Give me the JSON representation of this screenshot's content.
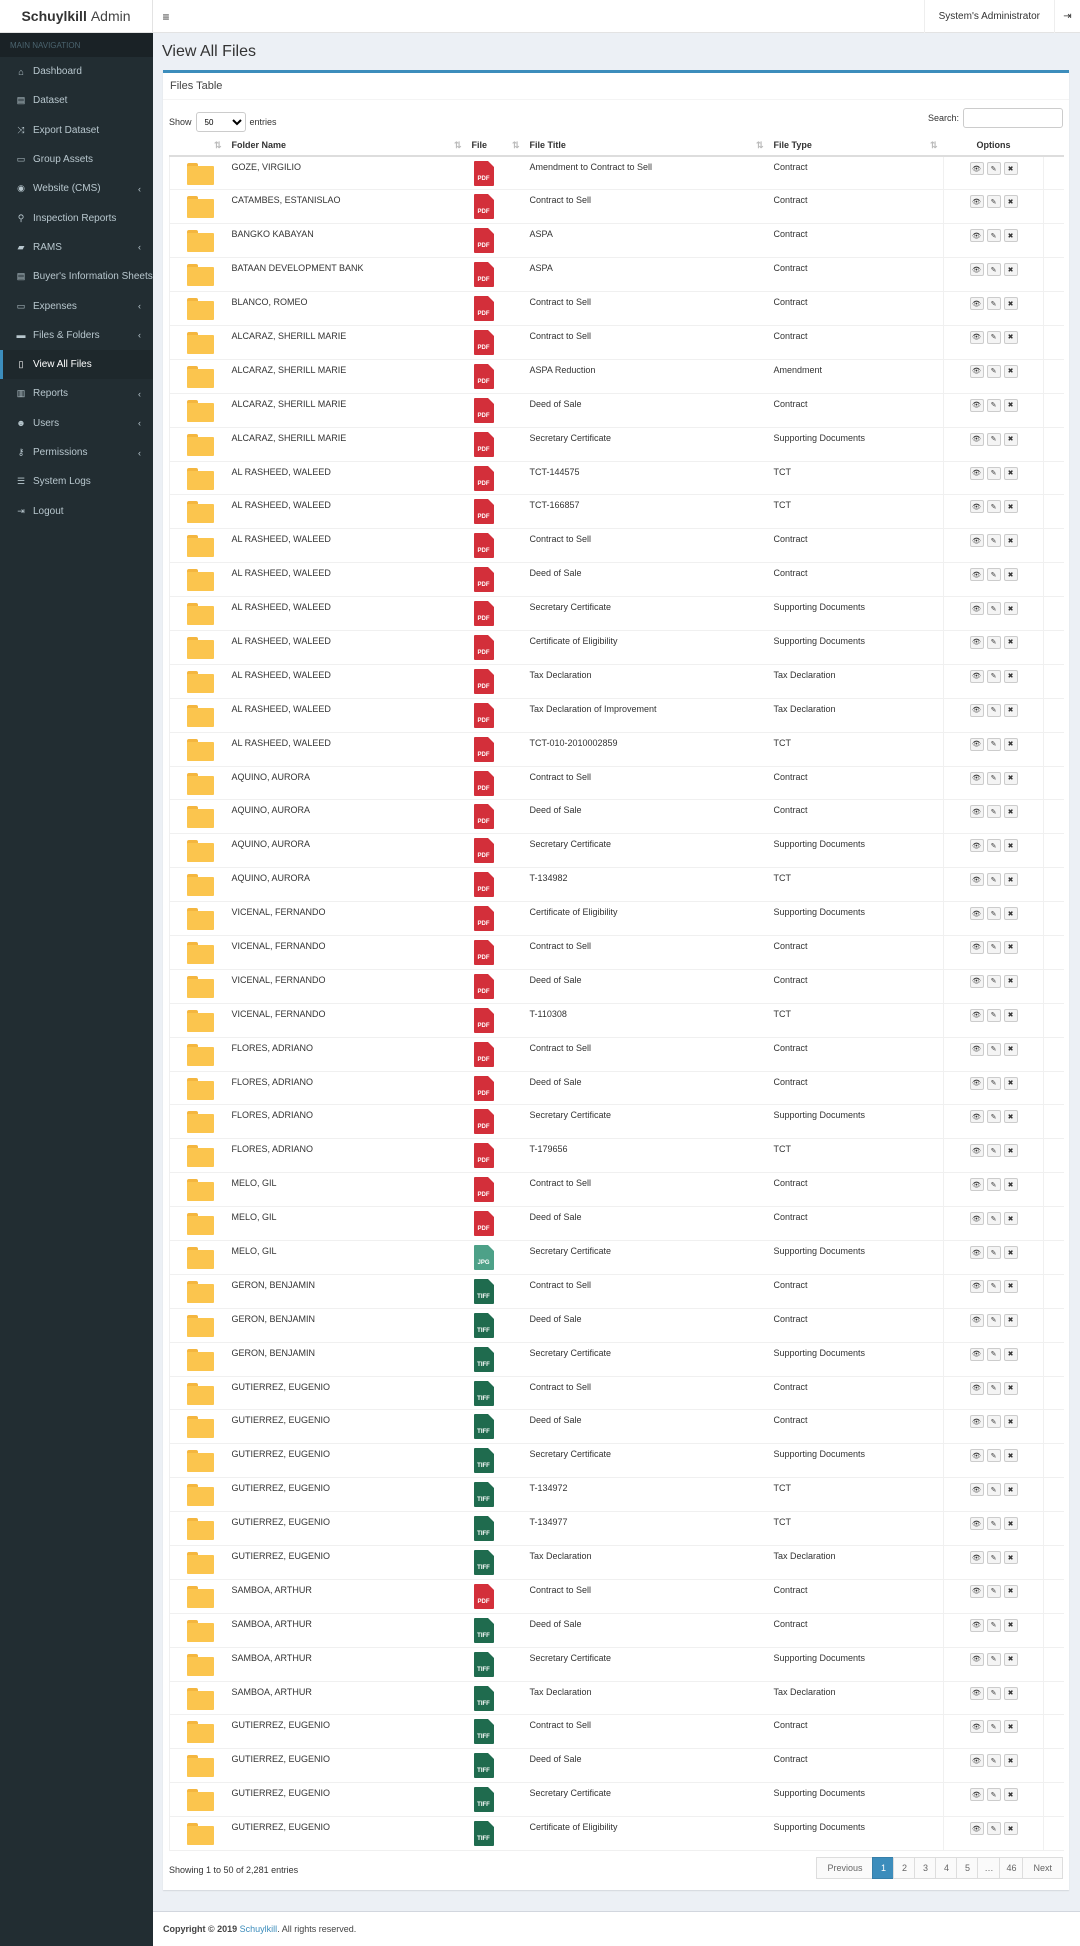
{
  "app": {
    "brand_bold": "Schuylkill",
    "brand_light": "Admin"
  },
  "topbar": {
    "toggle_icon": "≡",
    "user_name": "System's Administrator",
    "logout_icon": "⇥"
  },
  "sidebar": {
    "header": "MAIN NAVIGATION",
    "items": [
      {
        "label": "Dashboard",
        "icon": "⌂",
        "chev": ""
      },
      {
        "label": "Dataset",
        "icon": "▤",
        "chev": ""
      },
      {
        "label": "Export Dataset",
        "icon": "⤨",
        "chev": ""
      },
      {
        "label": "Group Assets",
        "icon": "▭",
        "chev": ""
      },
      {
        "label": "Website (CMS)",
        "icon": "◉",
        "chev": "‹"
      },
      {
        "label": "Inspection Reports",
        "icon": "⚲",
        "chev": ""
      },
      {
        "label": "RAMS",
        "icon": "▰",
        "chev": "‹"
      },
      {
        "label": "Buyer's Information Sheets",
        "icon": "▤",
        "chev": ""
      },
      {
        "label": "Expenses",
        "icon": "▭",
        "chev": "‹"
      },
      {
        "label": "Files & Folders",
        "icon": "▬",
        "chev": "‹"
      },
      {
        "label": "View All Files",
        "icon": "▯",
        "chev": ""
      },
      {
        "label": "Reports",
        "icon": "▥",
        "chev": "‹"
      },
      {
        "label": "Users",
        "icon": "☻",
        "chev": "‹"
      },
      {
        "label": "Permissions",
        "icon": "⚷",
        "chev": "‹"
      },
      {
        "label": "System Logs",
        "icon": "☰",
        "chev": ""
      },
      {
        "label": "Logout",
        "icon": "⇥",
        "chev": ""
      }
    ]
  },
  "page": {
    "title": "View All Files"
  },
  "box": {
    "title": "Files Table"
  },
  "controls": {
    "show_label": "Show",
    "entries_label": "entries",
    "page_size": "50",
    "search_label": "Search:",
    "search_value": ""
  },
  "table": {
    "headers": {
      "folder": "Folder Name",
      "file": "File",
      "title": "File Title",
      "type": "File Type",
      "options": "Options"
    },
    "rows": [
      {
        "folder": "GOZE, VIRGILIO",
        "ft": "PDF",
        "title": "Amendment to Contract to Sell",
        "type": "Contract"
      },
      {
        "folder": "CATAMBES, ESTANISLAO",
        "ft": "PDF",
        "title": "Contract to Sell",
        "type": "Contract"
      },
      {
        "folder": "BANGKO KABAYAN",
        "ft": "PDF",
        "title": "ASPA",
        "type": "Contract"
      },
      {
        "folder": "BATAAN DEVELOPMENT BANK",
        "ft": "PDF",
        "title": "ASPA",
        "type": "Contract"
      },
      {
        "folder": "BLANCO, ROMEO",
        "ft": "PDF",
        "title": "Contract to Sell",
        "type": "Contract"
      },
      {
        "folder": "ALCARAZ, SHERILL MARIE",
        "ft": "PDF",
        "title": "Contract to Sell",
        "type": "Contract"
      },
      {
        "folder": "ALCARAZ, SHERILL MARIE",
        "ft": "PDF",
        "title": "ASPA Reduction",
        "type": "Amendment"
      },
      {
        "folder": "ALCARAZ, SHERILL MARIE",
        "ft": "PDF",
        "title": "Deed of Sale",
        "type": "Contract"
      },
      {
        "folder": "ALCARAZ, SHERILL MARIE",
        "ft": "PDF",
        "title": "Secretary Certificate",
        "type": "Supporting Documents"
      },
      {
        "folder": "AL RASHEED, WALEED",
        "ft": "PDF",
        "title": "TCT-144575",
        "type": "TCT"
      },
      {
        "folder": "AL RASHEED, WALEED",
        "ft": "PDF",
        "title": "TCT-166857",
        "type": "TCT"
      },
      {
        "folder": "AL RASHEED, WALEED",
        "ft": "PDF",
        "title": "Contract to Sell",
        "type": "Contract"
      },
      {
        "folder": "AL RASHEED, WALEED",
        "ft": "PDF",
        "title": "Deed of Sale",
        "type": "Contract"
      },
      {
        "folder": "AL RASHEED, WALEED",
        "ft": "PDF",
        "title": "Secretary Certificate",
        "type": "Supporting Documents"
      },
      {
        "folder": "AL RASHEED, WALEED",
        "ft": "PDF",
        "title": "Certificate of Eligibility",
        "type": "Supporting Documents"
      },
      {
        "folder": "AL RASHEED, WALEED",
        "ft": "PDF",
        "title": "Tax Declaration",
        "type": "Tax Declaration"
      },
      {
        "folder": "AL RASHEED, WALEED",
        "ft": "PDF",
        "title": "Tax Declaration of Improvement",
        "type": "Tax Declaration"
      },
      {
        "folder": "AL RASHEED, WALEED",
        "ft": "PDF",
        "title": "TCT-010-2010002859",
        "type": "TCT"
      },
      {
        "folder": "AQUINO, AURORA",
        "ft": "PDF",
        "title": "Contract to Sell",
        "type": "Contract"
      },
      {
        "folder": "AQUINO, AURORA",
        "ft": "PDF",
        "title": "Deed of Sale",
        "type": "Contract"
      },
      {
        "folder": "AQUINO, AURORA",
        "ft": "PDF",
        "title": "Secretary Certificate",
        "type": "Supporting Documents"
      },
      {
        "folder": "AQUINO, AURORA",
        "ft": "PDF",
        "title": "T-134982",
        "type": "TCT"
      },
      {
        "folder": "VICENAL, FERNANDO",
        "ft": "PDF",
        "title": "Certificate of Eligibility",
        "type": "Supporting Documents"
      },
      {
        "folder": "VICENAL, FERNANDO",
        "ft": "PDF",
        "title": "Contract to Sell",
        "type": "Contract"
      },
      {
        "folder": "VICENAL, FERNANDO",
        "ft": "PDF",
        "title": "Deed of Sale",
        "type": "Contract"
      },
      {
        "folder": "VICENAL, FERNANDO",
        "ft": "PDF",
        "title": "T-110308",
        "type": "TCT"
      },
      {
        "folder": "FLORES, ADRIANO",
        "ft": "PDF",
        "title": "Contract to Sell",
        "type": "Contract"
      },
      {
        "folder": "FLORES, ADRIANO",
        "ft": "PDF",
        "title": "Deed of Sale",
        "type": "Contract"
      },
      {
        "folder": "FLORES, ADRIANO",
        "ft": "PDF",
        "title": "Secretary Certificate",
        "type": "Supporting Documents"
      },
      {
        "folder": "FLORES, ADRIANO",
        "ft": "PDF",
        "title": "T-179656",
        "type": "TCT"
      },
      {
        "folder": "MELO, GIL",
        "ft": "PDF",
        "title": "Contract to Sell",
        "type": "Contract"
      },
      {
        "folder": "MELO, GIL",
        "ft": "PDF",
        "title": "Deed of Sale",
        "type": "Contract"
      },
      {
        "folder": "MELO, GIL",
        "ft": "JPG",
        "title": "Secretary Certificate",
        "type": "Supporting Documents"
      },
      {
        "folder": "GERON, BENJAMIN",
        "ft": "TIFF",
        "title": "Contract to Sell",
        "type": "Contract"
      },
      {
        "folder": "GERON, BENJAMIN",
        "ft": "TIFF",
        "title": "Deed of Sale",
        "type": "Contract"
      },
      {
        "folder": "GERON, BENJAMIN",
        "ft": "TIFF",
        "title": "Secretary Certificate",
        "type": "Supporting Documents"
      },
      {
        "folder": "GUTIERREZ, EUGENIO",
        "ft": "TIFF",
        "title": "Contract to Sell",
        "type": "Contract"
      },
      {
        "folder": "GUTIERREZ, EUGENIO",
        "ft": "TIFF",
        "title": "Deed of Sale",
        "type": "Contract"
      },
      {
        "folder": "GUTIERREZ, EUGENIO",
        "ft": "TIFF",
        "title": "Secretary Certificate",
        "type": "Supporting Documents"
      },
      {
        "folder": "GUTIERREZ, EUGENIO",
        "ft": "TIFF",
        "title": "T-134972",
        "type": "TCT"
      },
      {
        "folder": "GUTIERREZ, EUGENIO",
        "ft": "TIFF",
        "title": "T-134977",
        "type": "TCT"
      },
      {
        "folder": "GUTIERREZ, EUGENIO",
        "ft": "TIFF",
        "title": "Tax Declaration",
        "type": "Tax Declaration"
      },
      {
        "folder": "SAMBOA, ARTHUR",
        "ft": "PDF",
        "title": "Contract to Sell",
        "type": "Contract"
      },
      {
        "folder": "SAMBOA, ARTHUR",
        "ft": "TIFF",
        "title": "Deed of Sale",
        "type": "Contract"
      },
      {
        "folder": "SAMBOA, ARTHUR",
        "ft": "TIFF",
        "title": "Secretary Certificate",
        "type": "Supporting Documents"
      },
      {
        "folder": "SAMBOA, ARTHUR",
        "ft": "TIFF",
        "title": "Tax Declaration",
        "type": "Tax Declaration"
      },
      {
        "folder": "GUTIERREZ, EUGENIO",
        "ft": "TIFF",
        "title": "Contract to Sell",
        "type": "Contract"
      },
      {
        "folder": "GUTIERREZ, EUGENIO",
        "ft": "TIFF",
        "title": "Deed of Sale",
        "type": "Contract"
      },
      {
        "folder": "GUTIERREZ, EUGENIO",
        "ft": "TIFF",
        "title": "Secretary Certificate",
        "type": "Supporting Documents"
      },
      {
        "folder": "GUTIERREZ, EUGENIO",
        "ft": "TIFF",
        "title": "Certificate of Eligibility",
        "type": "Supporting Documents"
      }
    ],
    "option_icons": {
      "view": "👁",
      "edit": "✎",
      "delete": "✖"
    }
  },
  "footer_info": "Showing 1 to 50 of 2,281 entries",
  "pagination": {
    "prev": "Previous",
    "pages": [
      "1",
      "2",
      "3",
      "4",
      "5",
      "…",
      "46"
    ],
    "next": "Next",
    "active": "1"
  },
  "footer": {
    "copyright": "Copyright © 2019",
    "link": "Schuylkill",
    "rights": ". All rights reserved."
  },
  "colors": {
    "accent": "#3c8dbc",
    "sidebar_bg": "#222d32",
    "pdf": "#d32f3a",
    "jpg": "#4da188",
    "tiff": "#1f6b4e",
    "folder": "#fbc54e"
  }
}
